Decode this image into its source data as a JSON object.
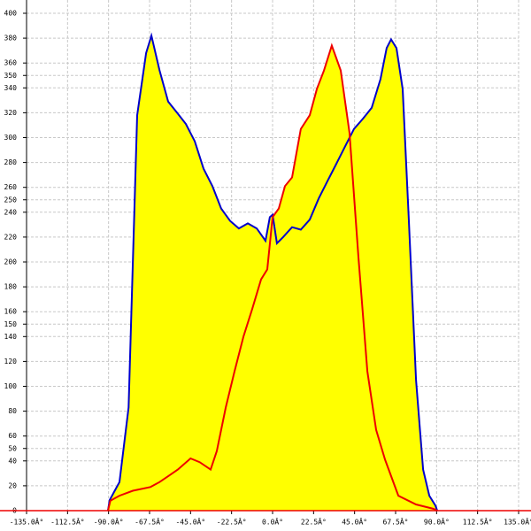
{
  "chart_data": {
    "type": "area",
    "xlim": [
      -135,
      135
    ],
    "ylim": [
      0,
      400
    ],
    "grid": true,
    "xticks": [
      {
        "value": -135,
        "label": "-135.0Â°"
      },
      {
        "value": -112.5,
        "label": "-112.5Â°"
      },
      {
        "value": -90,
        "label": "-90.0Â°"
      },
      {
        "value": -67.5,
        "label": "-67.5Â°"
      },
      {
        "value": -45,
        "label": "-45.0Â°"
      },
      {
        "value": -22.5,
        "label": "-22.5Â°"
      },
      {
        "value": 0,
        "label": "0.0Â°"
      },
      {
        "value": 22.5,
        "label": "22.5Â°"
      },
      {
        "value": 45,
        "label": "45.0Â°"
      },
      {
        "value": 67.5,
        "label": "67.5Â°"
      },
      {
        "value": 90,
        "label": "90.0Â°"
      },
      {
        "value": 112.5,
        "label": "112.5Â°"
      },
      {
        "value": 135,
        "label": "135.0Â°"
      }
    ],
    "yticks": [
      0,
      20,
      40,
      50,
      60,
      80,
      100,
      120,
      140,
      150,
      160,
      180,
      200,
      220,
      240,
      250,
      260,
      280,
      300,
      320,
      340,
      350,
      360,
      380,
      400
    ],
    "series": [
      {
        "color": "#0000cc",
        "fill": "#ffff00",
        "x": [
          -90.3,
          -89.4,
          -84,
          -79,
          -74.3,
          -69.4,
          -66.5,
          -62,
          -57.3,
          -52.4,
          -47.6,
          -42.7,
          -37.9,
          -33,
          -28.2,
          -23.3,
          -18.5,
          -13.6,
          -8.7,
          -3.9,
          -1.5,
          0,
          2.4,
          5.8,
          10.7,
          15.5,
          20.4,
          25.3,
          30.1,
          35,
          39.8,
          44.7,
          49.5,
          54.4,
          59.2,
          62.6,
          65,
          68,
          71.4,
          74.8,
          78.7,
          82.6,
          86,
          89.4,
          90.3
        ],
        "values": [
          0,
          8.5,
          23,
          83,
          318,
          368,
          382,
          354,
          329,
          320,
          311,
          297,
          275,
          261,
          243,
          233,
          227,
          231,
          227,
          217,
          236,
          238,
          215,
          220,
          228,
          226,
          234,
          251,
          265,
          279,
          293,
          307,
          315,
          324,
          347,
          372,
          379,
          372,
          339,
          233,
          105,
          33,
          12,
          4,
          0
        ]
      },
      {
        "color": "#ee0000",
        "fill": "#ffff00",
        "x": [
          -90.3,
          -89,
          -84,
          -76.7,
          -67,
          -62,
          -57,
          -52,
          -45,
          -40,
          -34,
          -30.6,
          -25.7,
          -20.9,
          -16,
          -11.2,
          -6.3,
          -2.9,
          0,
          3.4,
          6.8,
          10.7,
          15.5,
          20.4,
          24.3,
          28.2,
          32.5,
          37.4,
          42.2,
          47.1,
          52,
          56.8,
          61.7,
          69,
          78.7,
          88.4,
          90.3
        ],
        "values": [
          0,
          8,
          12,
          16,
          19,
          23,
          28,
          33,
          42,
          39,
          33,
          48,
          83,
          112,
          140,
          162,
          186,
          194,
          236,
          243,
          261,
          268,
          307,
          318,
          339,
          354,
          374,
          354,
          304,
          204,
          112,
          65,
          41,
          12,
          5,
          1.4,
          0
        ]
      }
    ]
  }
}
